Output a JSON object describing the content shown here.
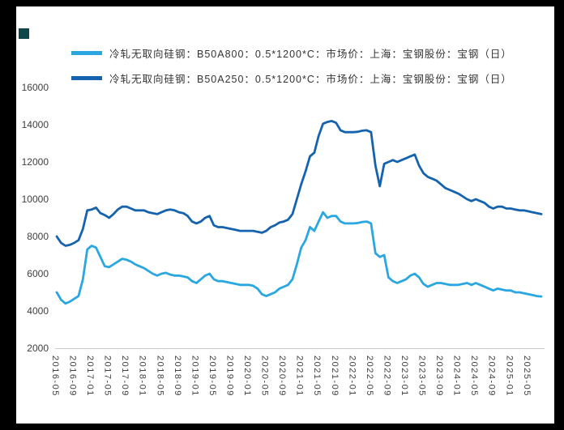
{
  "page": {
    "background_color": "#000000",
    "panel_color": "#ffffff",
    "corner_square_color": "#0e4749"
  },
  "chart_data": {
    "type": "line",
    "title": "",
    "xlabel": "",
    "ylabel": "",
    "ylim": [
      2000,
      16000
    ],
    "grid": false,
    "legend_position": "top-left",
    "x_start": "2016-05",
    "x_end": "2025-08",
    "x_interval": "monthly",
    "x_tick_labels": [
      "2016-05",
      "2016-09",
      "2017-01",
      "2017-05",
      "2017-09",
      "2018-01",
      "2018-05",
      "2018-09",
      "2019-01",
      "2019-05",
      "2019-09",
      "2020-01",
      "2020-05",
      "2020-09",
      "2021-01",
      "2021-05",
      "2021-09",
      "2022-01",
      "2022-05",
      "2022-09",
      "2023-01",
      "2023-05",
      "2023-09",
      "2024-01",
      "2024-05",
      "2024-09",
      "2025-01",
      "2025-05"
    ],
    "x_tick_every_n_months": 4,
    "y_ticks": [
      2000,
      4000,
      6000,
      8000,
      10000,
      12000,
      14000,
      16000
    ],
    "series": [
      {
        "name": "冷轧无取向硅钢：B50A800：0.5*1200*C：市场价：上海：宝钢股份：宝钢（日）",
        "color": "#2AA7E1",
        "values": [
          5000,
          4600,
          4400,
          4500,
          4650,
          4800,
          5700,
          7300,
          7500,
          7400,
          6900,
          6400,
          6350,
          6500,
          6650,
          6800,
          6750,
          6650,
          6500,
          6400,
          6300,
          6150,
          6000,
          5900,
          6000,
          6050,
          5950,
          5900,
          5900,
          5850,
          5800,
          5600,
          5500,
          5700,
          5900,
          6000,
          5700,
          5600,
          5600,
          5550,
          5500,
          5450,
          5400,
          5400,
          5400,
          5350,
          5200,
          4900,
          4800,
          4900,
          5000,
          5200,
          5300,
          5400,
          5700,
          6500,
          7400,
          7800,
          8500,
          8300,
          8800,
          9300,
          9000,
          9100,
          9100,
          8800,
          8700,
          8700,
          8700,
          8720,
          8780,
          8800,
          8700,
          7100,
          6900,
          7000,
          5800,
          5600,
          5500,
          5600,
          5700,
          5900,
          6000,
          5800,
          5450,
          5300,
          5400,
          5500,
          5500,
          5450,
          5400,
          5400,
          5400,
          5450,
          5500,
          5400,
          5500,
          5400,
          5300,
          5200,
          5100,
          5200,
          5150,
          5100,
          5100,
          5000,
          5000,
          4950,
          4900,
          4850,
          4800,
          4780
        ]
      },
      {
        "name": "冷轧无取向硅钢：B50A250：0.5*1200*C：市场价：上海：宝钢股份：宝钢（日）",
        "color": "#1563AE",
        "values": [
          8000,
          7650,
          7500,
          7550,
          7650,
          7800,
          8400,
          9400,
          9450,
          9550,
          9250,
          9150,
          9000,
          9200,
          9450,
          9600,
          9600,
          9500,
          9400,
          9400,
          9400,
          9300,
          9250,
          9200,
          9300,
          9400,
          9450,
          9400,
          9300,
          9250,
          9100,
          8800,
          8700,
          8800,
          9000,
          9100,
          8600,
          8500,
          8500,
          8450,
          8400,
          8350,
          8300,
          8300,
          8300,
          8300,
          8250,
          8200,
          8300,
          8500,
          8600,
          8750,
          8800,
          8900,
          9200,
          10000,
          10800,
          11500,
          12300,
          12500,
          13400,
          14050,
          14150,
          14200,
          14100,
          13700,
          13600,
          13600,
          13600,
          13620,
          13680,
          13700,
          13600,
          11800,
          10700,
          11900,
          12000,
          12100,
          12000,
          12100,
          12200,
          12300,
          12400,
          11800,
          11400,
          11200,
          11100,
          11000,
          10800,
          10600,
          10500,
          10400,
          10300,
          10150,
          10000,
          9900,
          10000,
          9900,
          9800,
          9600,
          9500,
          9600,
          9600,
          9500,
          9500,
          9450,
          9400,
          9400,
          9350,
          9300,
          9250,
          9200
        ]
      }
    ]
  }
}
